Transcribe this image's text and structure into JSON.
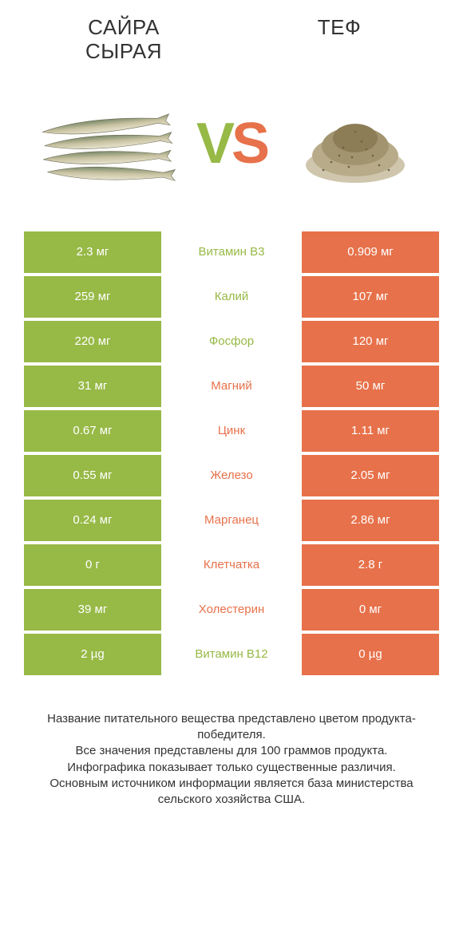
{
  "colors": {
    "left_bar": "#97b946",
    "right_bar": "#e7714a",
    "vs_left": "#97b946",
    "vs_right": "#e7714a",
    "text": "#333333"
  },
  "left_title": "САЙРА\nСЫРАЯ",
  "right_title": "ТЕФ",
  "nutrients": [
    {
      "name": "Витамин B3",
      "left": "2.3 мг",
      "right": "0.909 мг",
      "winner": "left"
    },
    {
      "name": "Калий",
      "left": "259 мг",
      "right": "107 мг",
      "winner": "left"
    },
    {
      "name": "Фосфор",
      "left": "220 мг",
      "right": "120 мг",
      "winner": "left"
    },
    {
      "name": "Магний",
      "left": "31 мг",
      "right": "50 мг",
      "winner": "right"
    },
    {
      "name": "Цинк",
      "left": "0.67 мг",
      "right": "1.11 мг",
      "winner": "right"
    },
    {
      "name": "Железо",
      "left": "0.55 мг",
      "right": "2.05 мг",
      "winner": "right"
    },
    {
      "name": "Марганец",
      "left": "0.24 мг",
      "right": "2.86 мг",
      "winner": "right"
    },
    {
      "name": "Клетчатка",
      "left": "0 г",
      "right": "2.8 г",
      "winner": "right"
    },
    {
      "name": "Холестерин",
      "left": "39 мг",
      "right": "0 мг",
      "winner": "right"
    },
    {
      "name": "Витамин B12",
      "left": "2 µg",
      "right": "0 µg",
      "winner": "left"
    }
  ],
  "footer_lines": [
    "Название питательного вещества представлено цветом продукта-победителя.",
    "Все значения представлены для 100 граммов продукта.",
    "Инфографика показывает только существенные различия.",
    "Основным источником информации является база министерства сельского хозяйства США."
  ]
}
